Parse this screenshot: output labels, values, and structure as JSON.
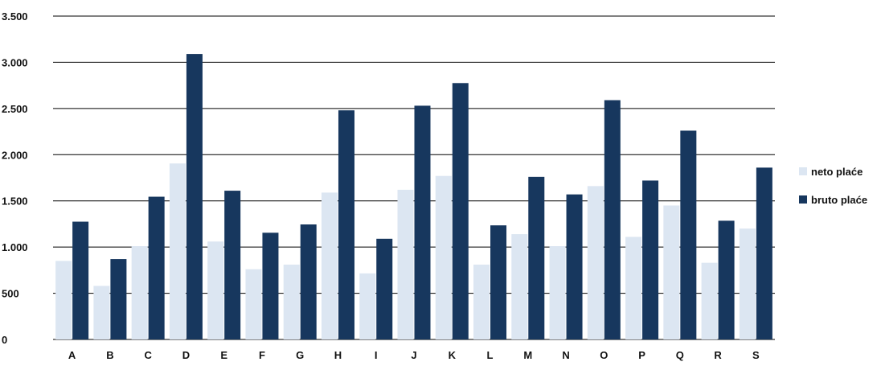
{
  "chart_data": {
    "type": "bar",
    "categories": [
      "A",
      "B",
      "C",
      "D",
      "E",
      "F",
      "G",
      "H",
      "I",
      "J",
      "K",
      "L",
      "M",
      "N",
      "O",
      "P",
      "Q",
      "R",
      "S"
    ],
    "series": [
      {
        "name": "neto plaće",
        "color": "#dce6f2",
        "values": [
          850,
          580,
          1010,
          1905,
          1060,
          760,
          810,
          1590,
          715,
          1620,
          1770,
          810,
          1140,
          1010,
          1660,
          1110,
          1450,
          830,
          1200
        ]
      },
      {
        "name": "bruto plaće",
        "color": "#17375e",
        "values": [
          1275,
          870,
          1545,
          3090,
          1610,
          1155,
          1245,
          2480,
          1090,
          2530,
          2775,
          1235,
          1760,
          1570,
          2590,
          1720,
          2260,
          1285,
          1860
        ]
      }
    ],
    "ylim": [
      0,
      3500
    ],
    "yticks": [
      0,
      500,
      1000,
      1500,
      2000,
      2500,
      3000,
      3500
    ],
    "ytick_labels": [
      "0",
      "500",
      "1.000",
      "1.500",
      "2.000",
      "2.500",
      "3.000",
      "3.500"
    ],
    "grid": true,
    "legend_position": "right",
    "title": "",
    "xlabel": "",
    "ylabel": ""
  }
}
